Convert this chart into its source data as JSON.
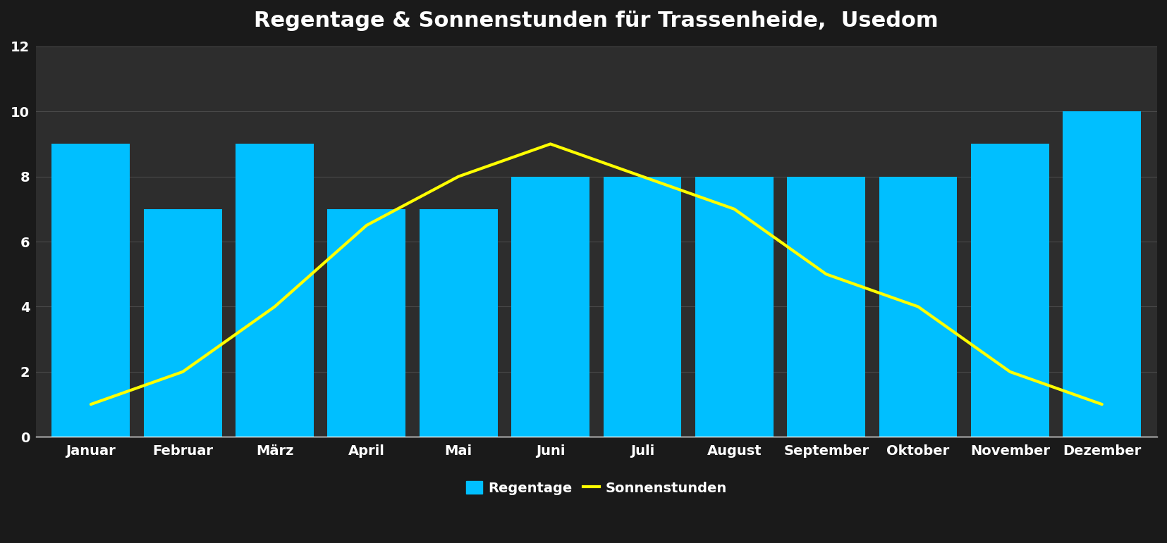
{
  "title": "Regentage & Sonnenstunden für Trassenheide,  Usedom",
  "months": [
    "Januar",
    "Februar",
    "März",
    "April",
    "Mai",
    "Juni",
    "Juli",
    "August",
    "September",
    "Oktober",
    "November",
    "Dezember"
  ],
  "regentage": [
    9,
    7,
    9,
    7,
    7,
    8,
    8,
    8,
    8,
    8,
    9,
    10
  ],
  "sonnenstunden": [
    1,
    2,
    4,
    6.5,
    8,
    9,
    8,
    7,
    5,
    4,
    2,
    1
  ],
  "bar_color": "#00BFFF",
  "line_color": "#FFFF00",
  "background_color_center": "#3a3a3a",
  "background_color_edge": "#1a1a1a",
  "text_color": "#ffffff",
  "grid_color": "#4a4a4a",
  "ylim": [
    0,
    12
  ],
  "yticks": [
    0,
    2,
    4,
    6,
    8,
    10,
    12
  ],
  "title_fontsize": 22,
  "tick_fontsize": 14,
  "legend_fontsize": 14,
  "line_width": 3.0,
  "bar_width": 0.85,
  "legend_bar_label": "Regentage",
  "legend_line_label": "Sonnenstunden"
}
